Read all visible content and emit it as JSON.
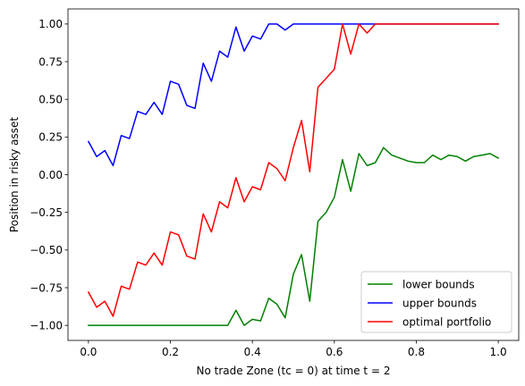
{
  "chart_data": {
    "type": "line",
    "title": "",
    "xlabel": "No trade Zone (tc = 0) at time t = 2",
    "ylabel": "Position in risky asset",
    "xlim": [
      -0.05,
      1.05
    ],
    "ylim": [
      -1.1,
      1.1
    ],
    "xticks": [
      0.0,
      0.2,
      0.4,
      0.6,
      0.8,
      1.0
    ],
    "xtick_labels": [
      "0.0",
      "0.2",
      "0.4",
      "0.6",
      "0.8",
      "1.0"
    ],
    "yticks": [
      -1.0,
      -0.75,
      -0.5,
      -0.25,
      0.0,
      0.25,
      0.5,
      0.75,
      1.0
    ],
    "ytick_labels": [
      "−1.00",
      "−0.75",
      "−0.50",
      "−0.25",
      "0.00",
      "0.25",
      "0.50",
      "0.75",
      "1.00"
    ],
    "grid": false,
    "legend_position": "lower-right",
    "x": [
      0.0,
      0.02,
      0.04,
      0.06,
      0.08,
      0.1,
      0.12,
      0.14,
      0.16,
      0.18,
      0.2,
      0.22,
      0.24,
      0.26,
      0.28,
      0.3,
      0.32,
      0.34,
      0.36,
      0.38,
      0.4,
      0.42,
      0.44,
      0.46,
      0.48,
      0.5,
      0.52,
      0.54,
      0.56,
      0.58,
      0.6,
      0.62,
      0.64,
      0.66,
      0.68,
      0.7,
      0.72,
      0.74,
      0.76,
      0.78,
      0.8,
      0.82,
      0.84,
      0.86,
      0.88,
      0.9,
      0.92,
      0.94,
      0.96,
      0.98,
      1.0
    ],
    "series": [
      {
        "name": "lower bounds",
        "color": "#008000",
        "values": [
          -1.0,
          -1.0,
          -1.0,
          -1.0,
          -1.0,
          -1.0,
          -1.0,
          -1.0,
          -1.0,
          -1.0,
          -1.0,
          -1.0,
          -1.0,
          -1.0,
          -1.0,
          -1.0,
          -1.0,
          -1.0,
          -0.9,
          -1.0,
          -0.96,
          -0.97,
          -0.82,
          -0.86,
          -0.95,
          -0.66,
          -0.53,
          -0.84,
          -0.31,
          -0.25,
          -0.15,
          0.1,
          -0.11,
          0.14,
          0.06,
          0.08,
          0.18,
          0.13,
          0.11,
          0.09,
          0.08,
          0.08,
          0.13,
          0.1,
          0.13,
          0.12,
          0.09,
          0.12,
          0.13,
          0.14,
          0.11
        ]
      },
      {
        "name": "upper bounds",
        "color": "#0000ff",
        "values": [
          0.22,
          0.12,
          0.16,
          0.06,
          0.26,
          0.24,
          0.42,
          0.4,
          0.48,
          0.4,
          0.62,
          0.6,
          0.46,
          0.44,
          0.74,
          0.62,
          0.82,
          0.78,
          0.98,
          0.82,
          0.92,
          0.9,
          1.0,
          1.0,
          0.96,
          1.0,
          1.0,
          1.0,
          1.0,
          1.0,
          1.0,
          1.0,
          1.0,
          1.0,
          1.0,
          1.0,
          1.0,
          1.0,
          1.0,
          1.0,
          1.0,
          1.0,
          1.0,
          1.0,
          1.0,
          1.0,
          1.0,
          1.0,
          1.0,
          1.0,
          1.0
        ]
      },
      {
        "name": "optimal portfolio",
        "color": "#ff0000",
        "values": [
          -0.78,
          -0.88,
          -0.84,
          -0.94,
          -0.74,
          -0.76,
          -0.58,
          -0.6,
          -0.52,
          -0.6,
          -0.38,
          -0.4,
          -0.54,
          -0.56,
          -0.26,
          -0.38,
          -0.18,
          -0.22,
          -0.02,
          -0.18,
          -0.08,
          -0.1,
          0.08,
          0.04,
          -0.04,
          0.18,
          0.36,
          0.02,
          0.58,
          0.64,
          0.7,
          1.0,
          0.8,
          1.0,
          0.94,
          1.0,
          1.0,
          1.0,
          1.0,
          1.0,
          1.0,
          1.0,
          1.0,
          1.0,
          1.0,
          1.0,
          1.0,
          1.0,
          1.0,
          1.0,
          1.0
        ]
      }
    ]
  }
}
